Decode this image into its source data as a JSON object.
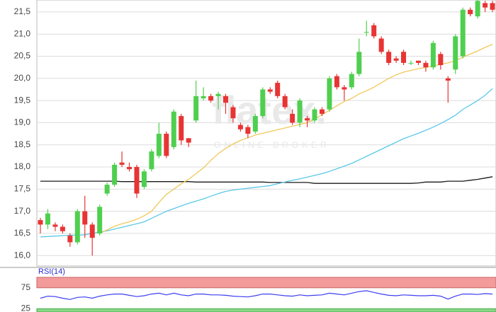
{
  "chart_data": [
    {
      "type": "candlestick",
      "ylim": [
        15.78,
        21.77
      ],
      "yticks": [
        {
          "value": 16,
          "label": "16,0"
        },
        {
          "value": 16.5,
          "label": "16,5"
        },
        {
          "value": 17,
          "label": "17,0"
        },
        {
          "value": 17.5,
          "label": "17,5"
        },
        {
          "value": 18,
          "label": "18,0"
        },
        {
          "value": 18.5,
          "label": "18,5"
        },
        {
          "value": 19,
          "label": "19,0"
        },
        {
          "value": 19.5,
          "label": "19,5"
        },
        {
          "value": 20,
          "label": "20,0"
        },
        {
          "value": 20.5,
          "label": "20,5"
        },
        {
          "value": 21,
          "label": "21,0"
        },
        {
          "value": 21.5,
          "label": "21,5"
        }
      ],
      "grid": true,
      "up_color": "#4fcf4f",
      "down_color": "#e83434",
      "open": [
        16.8,
        16.7,
        16.7,
        16.65,
        16.45,
        16.3,
        17.0,
        16.7,
        16.5,
        17.4,
        17.6,
        18.1,
        18.0,
        18.0,
        17.55,
        17.95,
        18.25,
        18.75,
        18.45,
        19.15,
        18.65,
        19.05,
        19.55,
        19.6,
        19.6,
        19.6,
        19.35,
        18.95,
        18.9,
        18.8,
        19.15,
        19.75,
        19.9,
        19.6,
        19.2,
        19.0,
        19.1,
        19.05,
        19.3,
        19.3,
        20.05,
        19.8,
        19.8,
        20.1,
        21.05,
        21.2,
        20.9,
        20.6,
        20.45,
        20.6,
        20.35,
        20.4,
        20.35,
        20.25,
        20.55,
        20.0,
        20.2,
        20.5,
        21.55,
        21.4,
        21.7,
        21.7
      ],
      "high": [
        16.85,
        17.05,
        16.75,
        16.7,
        16.5,
        17.05,
        17.35,
        16.75,
        17.15,
        17.65,
        18.1,
        18.35,
        18.1,
        18.05,
        17.95,
        18.4,
        19.0,
        18.8,
        19.3,
        19.2,
        18.65,
        19.95,
        19.8,
        19.65,
        19.7,
        19.65,
        19.4,
        19.0,
        18.95,
        19.2,
        19.8,
        19.8,
        19.95,
        19.65,
        19.3,
        19.55,
        19.15,
        19.35,
        19.35,
        20.05,
        20.1,
        19.85,
        20.15,
        20.9,
        21.3,
        21.25,
        20.95,
        20.65,
        20.5,
        20.65,
        20.4,
        20.4,
        20.4,
        20.85,
        20.6,
        20.05,
        21.0,
        21.6,
        21.6,
        21.8,
        21.75,
        21.75
      ],
      "low": [
        16.5,
        16.6,
        16.55,
        16.5,
        16.2,
        16.25,
        16.4,
        16.0,
        16.45,
        17.35,
        17.55,
        18.0,
        17.9,
        17.3,
        17.5,
        17.9,
        18.2,
        18.2,
        18.4,
        18.5,
        18.45,
        19.0,
        19.5,
        19.45,
        19.3,
        19.2,
        19.0,
        18.8,
        18.65,
        18.75,
        19.1,
        19.65,
        19.55,
        19.3,
        18.95,
        18.9,
        18.9,
        19.0,
        19.15,
        19.25,
        19.75,
        19.5,
        19.75,
        20.05,
        20.95,
        20.9,
        20.55,
        20.3,
        20.35,
        20.3,
        20.3,
        20.3,
        20.15,
        20.2,
        20.2,
        19.45,
        20.1,
        20.45,
        21.4,
        21.35,
        21.5,
        21.5
      ],
      "close": [
        16.7,
        16.95,
        16.65,
        16.55,
        16.3,
        17.0,
        16.7,
        16.4,
        17.1,
        17.6,
        18.05,
        18.05,
        17.95,
        17.4,
        17.9,
        18.35,
        18.75,
        18.25,
        19.25,
        18.6,
        18.55,
        19.6,
        19.6,
        19.5,
        19.65,
        19.45,
        19.1,
        18.85,
        18.75,
        19.15,
        19.75,
        19.7,
        19.6,
        19.35,
        19.0,
        19.5,
        19.05,
        19.3,
        19.2,
        20.0,
        19.8,
        19.75,
        20.1,
        20.6,
        21.05,
        20.95,
        20.6,
        20.35,
        20.4,
        20.35,
        20.35,
        20.35,
        20.25,
        20.8,
        20.3,
        19.95,
        20.95,
        21.55,
        21.45,
        21.75,
        21.6,
        21.55
      ],
      "overlays": [
        {
          "color": "#1a1a1a",
          "values": [
            17.68,
            17.68,
            17.68,
            17.68,
            17.68,
            17.68,
            17.68,
            17.68,
            17.68,
            17.68,
            17.68,
            17.67,
            17.67,
            17.67,
            17.67,
            17.67,
            17.67,
            17.67,
            17.67,
            17.67,
            17.67,
            17.66,
            17.66,
            17.66,
            17.66,
            17.66,
            17.66,
            17.66,
            17.66,
            17.66,
            17.66,
            17.65,
            17.65,
            17.65,
            17.65,
            17.65,
            17.65,
            17.63,
            17.63,
            17.63,
            17.63,
            17.63,
            17.63,
            17.63,
            17.63,
            17.63,
            17.63,
            17.63,
            17.63,
            17.63,
            17.63,
            17.64,
            17.66,
            17.66,
            17.66,
            17.68,
            17.68,
            17.68,
            17.7,
            17.72,
            17.75,
            17.78
          ]
        },
        {
          "color": "#5bc8e8",
          "values": [
            16.42,
            16.43,
            16.44,
            16.45,
            16.46,
            16.46,
            16.47,
            16.5,
            16.53,
            16.56,
            16.6,
            16.64,
            16.68,
            16.72,
            16.76,
            16.84,
            16.92,
            17.0,
            17.06,
            17.12,
            17.18,
            17.23,
            17.28,
            17.34,
            17.4,
            17.45,
            17.48,
            17.5,
            17.52,
            17.54,
            17.56,
            17.58,
            17.62,
            17.66,
            17.7,
            17.73,
            17.77,
            17.81,
            17.85,
            17.9,
            17.96,
            18.02,
            18.08,
            18.16,
            18.24,
            18.32,
            18.4,
            18.48,
            18.56,
            18.64,
            18.7,
            18.76,
            18.83,
            18.9,
            18.98,
            19.07,
            19.17,
            19.3,
            19.4,
            19.5,
            19.62,
            19.77
          ]
        },
        {
          "color": "#f0c85a",
          "values": [
            null,
            null,
            null,
            null,
            null,
            null,
            null,
            null,
            16.5,
            16.58,
            16.66,
            16.72,
            16.76,
            16.82,
            16.9,
            17.0,
            17.2,
            17.38,
            17.5,
            17.62,
            17.72,
            17.85,
            17.98,
            18.15,
            18.3,
            18.42,
            18.52,
            18.6,
            18.66,
            18.72,
            18.76,
            18.8,
            18.84,
            18.88,
            18.92,
            18.96,
            19.0,
            19.08,
            19.18,
            19.28,
            19.38,
            19.48,
            19.55,
            19.65,
            19.72,
            19.8,
            19.9,
            20.0,
            20.08,
            20.14,
            20.18,
            20.22,
            20.25,
            20.28,
            20.32,
            20.35,
            20.4,
            20.48,
            20.55,
            20.62,
            20.7,
            20.77
          ]
        }
      ]
    },
    {
      "type": "line",
      "title": "RSI(14)",
      "color": "#3d3df0",
      "ylim": [
        17,
        100
      ],
      "yticks": [
        75,
        25
      ],
      "band_colors": [
        "#f39a9a",
        "#86d886"
      ],
      "values": [
        50,
        55,
        54,
        50,
        47,
        52,
        53,
        50,
        55,
        58,
        60,
        60,
        57,
        54,
        56,
        60,
        62,
        58,
        62,
        58,
        56,
        60,
        60,
        58,
        58,
        57,
        55,
        54,
        53,
        56,
        60,
        60,
        58,
        56,
        55,
        58,
        56,
        57,
        58,
        62,
        60,
        58,
        62,
        66,
        68,
        64,
        60,
        57,
        56,
        58,
        57,
        56,
        56,
        57,
        55,
        48,
        55,
        60,
        60,
        59,
        61,
        60
      ]
    }
  ],
  "watermark": {
    "title": "flatex.",
    "subtitle": "ONLINE BROKER"
  }
}
